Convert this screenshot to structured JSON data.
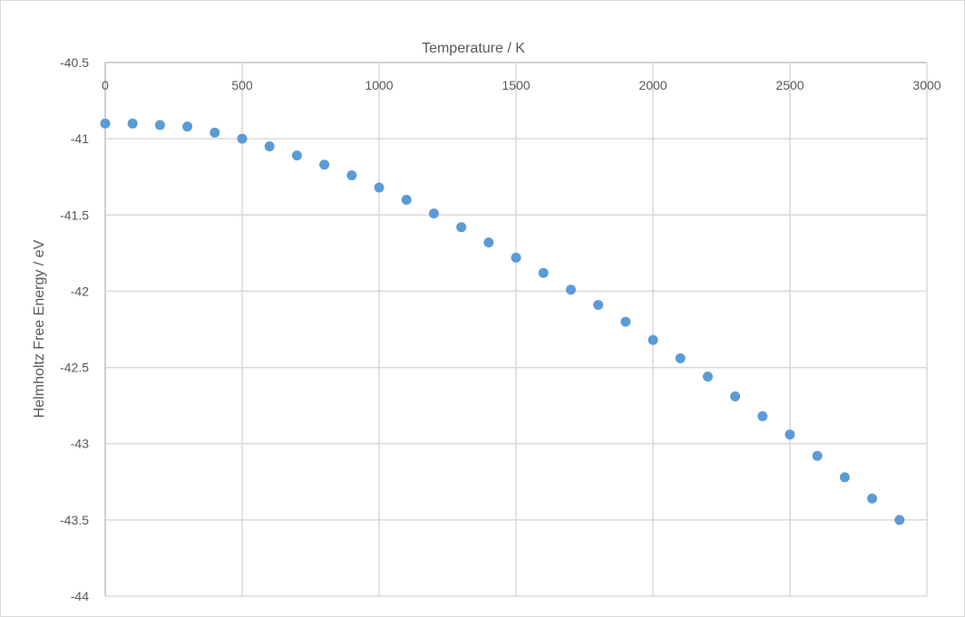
{
  "chart_data": {
    "type": "scatter",
    "title": "",
    "xlabel": "Temperature / K",
    "ylabel": "Helmholtz Free Energy / eV",
    "xlim": [
      0,
      3000
    ],
    "ylim": [
      -44,
      -40.5
    ],
    "x_axis_position": "top",
    "grid": true,
    "xticks": [
      0,
      500,
      1000,
      1500,
      2000,
      2500,
      3000
    ],
    "yticks": [
      -40.5,
      -41,
      -41.5,
      -42,
      -42.5,
      -43,
      -43.5,
      -44
    ],
    "xtick_labels": [
      "0",
      "500",
      "1000",
      "1500",
      "2000",
      "2500",
      "3000"
    ],
    "ytick_labels": [
      "-40.5",
      "-41",
      "-41.5",
      "-42",
      "-42.5",
      "-43",
      "-43.5",
      "-44"
    ],
    "marker_color": "#5b9bd5",
    "series": [
      {
        "name": "Helmholtz Free Energy",
        "x": [
          0,
          100,
          200,
          300,
          400,
          500,
          600,
          700,
          800,
          900,
          1000,
          1100,
          1200,
          1300,
          1400,
          1500,
          1600,
          1700,
          1800,
          1900,
          2000,
          2100,
          2200,
          2300,
          2400,
          2500,
          2600,
          2700,
          2800,
          2900
        ],
        "y": [
          -40.9,
          -40.9,
          -40.91,
          -40.92,
          -40.96,
          -41.0,
          -41.05,
          -41.11,
          -41.17,
          -41.24,
          -41.32,
          -41.4,
          -41.49,
          -41.58,
          -41.68,
          -41.78,
          -41.88,
          -41.99,
          -42.09,
          -42.2,
          -42.32,
          -42.44,
          -42.56,
          -42.69,
          -42.82,
          -42.94,
          -43.08,
          -43.22,
          -43.36,
          -43.5
        ]
      }
    ]
  }
}
